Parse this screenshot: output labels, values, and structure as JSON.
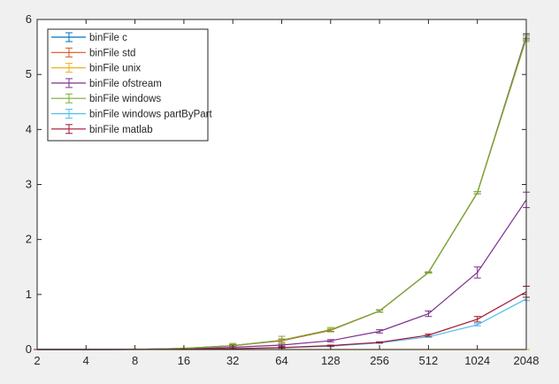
{
  "chart_data": {
    "type": "line",
    "title": "",
    "xlabel": "",
    "ylabel": "",
    "x_scale": "log2",
    "x": [
      2,
      4,
      8,
      16,
      32,
      64,
      128,
      256,
      512,
      1024,
      2048
    ],
    "x_tick_labels": [
      "2",
      "4",
      "8",
      "16",
      "32",
      "64",
      "128",
      "256",
      "512",
      "1024",
      "2048"
    ],
    "y_ticks": [
      0,
      1,
      2,
      3,
      4,
      5,
      6
    ],
    "y_tick_labels": [
      "0",
      "1",
      "2",
      "3",
      "4",
      "5",
      "6"
    ],
    "ylim": [
      0,
      6
    ],
    "grid": false,
    "legend_placement": "top-left",
    "series": [
      {
        "name": "binFile c",
        "color": "#0072bd",
        "values": [
          0,
          0,
          0.002,
          0.02,
          0.07,
          0.16,
          0.35,
          0.7,
          1.4,
          2.85,
          5.7
        ],
        "errors": [
          0,
          0,
          0,
          0.005,
          0.02,
          0.03,
          0.02,
          0.02,
          0.01,
          0.02,
          0.04
        ]
      },
      {
        "name": "binFile std",
        "color": "#d95319",
        "values": [
          0,
          0,
          0.002,
          0.02,
          0.07,
          0.16,
          0.35,
          0.7,
          1.4,
          2.85,
          5.68
        ],
        "errors": [
          0,
          0,
          0,
          0.005,
          0.02,
          0.03,
          0.02,
          0.02,
          0.01,
          0.02,
          0.05
        ]
      },
      {
        "name": "binFile unix",
        "color": "#edb120",
        "values": [
          0,
          0,
          0,
          0,
          0,
          0,
          0,
          0,
          0,
          0,
          0
        ],
        "errors": [
          0,
          0,
          0,
          0,
          0,
          0,
          0,
          0,
          0,
          0,
          0
        ]
      },
      {
        "name": "binFile ofstream",
        "color": "#7e2f8e",
        "values": [
          0,
          0,
          0.001,
          0.01,
          0.04,
          0.08,
          0.16,
          0.33,
          0.65,
          1.4,
          2.72
        ],
        "errors": [
          0,
          0,
          0,
          0.003,
          0.01,
          0.02,
          0.02,
          0.03,
          0.05,
          0.1,
          0.14
        ]
      },
      {
        "name": "binFile windows",
        "color": "#77ac30",
        "values": [
          0,
          0,
          0.002,
          0.02,
          0.07,
          0.17,
          0.36,
          0.7,
          1.4,
          2.85,
          5.65
        ],
        "errors": [
          0,
          0,
          0,
          0.005,
          0.04,
          0.07,
          0.04,
          0.02,
          0.01,
          0.02,
          0.05
        ]
      },
      {
        "name": "binFile windows partByPart",
        "color": "#4dbeee",
        "values": [
          0,
          0,
          0.001,
          0.004,
          0.015,
          0.03,
          0.06,
          0.12,
          0.23,
          0.45,
          0.92
        ],
        "errors": [
          0,
          0,
          0,
          0.002,
          0.005,
          0.01,
          0.01,
          0.01,
          0.01,
          0.02,
          0.03
        ]
      },
      {
        "name": "binFile matlab",
        "color": "#a2142f",
        "values": [
          0,
          0,
          0.001,
          0.005,
          0.015,
          0.035,
          0.07,
          0.13,
          0.26,
          0.55,
          1.05
        ],
        "errors": [
          0,
          0,
          0,
          0.002,
          0.005,
          0.01,
          0.01,
          0.01,
          0.02,
          0.05,
          0.1
        ]
      }
    ]
  }
}
